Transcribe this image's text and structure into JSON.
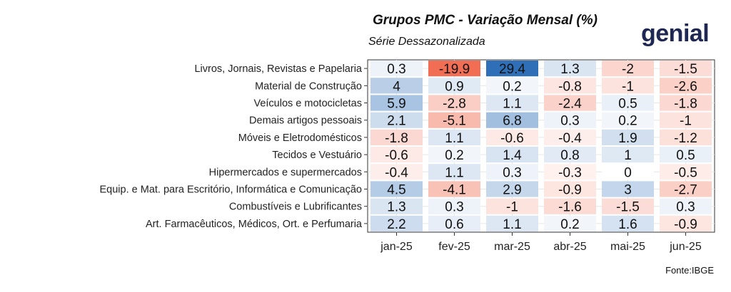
{
  "header": {
    "title": "Grupos PMC - Variação Mensal (%)",
    "subtitle": "Série Dessazonalizada",
    "logo_text": "genial",
    "source": "Fonte:IBGE"
  },
  "colors": {
    "positive": "#2f6fb8",
    "negative": "#ee4b2b",
    "grid": "#e6e6e6",
    "logo": "#1f2753"
  },
  "chart_data": {
    "type": "heatmap",
    "title": "Grupos PMC - Variação Mensal (%)",
    "subtitle": "Série Dessazonalizada",
    "x_categories": [
      "jan-25",
      "fev-25",
      "mar-25",
      "abr-25",
      "mai-25",
      "jun-25"
    ],
    "y_categories": [
      "Livros, Jornais, Revistas e Papelaria",
      "Material de Construção",
      "Veículos e motocicletas",
      "Demais artigos pessoais",
      "Móveis e Eletrodomésticos",
      "Tecidos e Vestuário",
      "Hipermercados e supermercados",
      "Equip. e Mat. para Escritório, Informática e Comunicação",
      "Combustíveis e Lubrificantes",
      "Art. Farmacêuticos, Médicos, Ort. e Perfumaria"
    ],
    "values": [
      [
        0.3,
        -19.9,
        29.4,
        1.3,
        -2,
        -1.5
      ],
      [
        4,
        0.9,
        0.2,
        -0.8,
        -1,
        -2.6
      ],
      [
        5.9,
        -2.8,
        1.1,
        -2.4,
        0.5,
        -1.8
      ],
      [
        2.1,
        -5.1,
        6.8,
        0.3,
        0.2,
        -1
      ],
      [
        -1.8,
        1.1,
        -0.6,
        -0.4,
        1.9,
        -1.2
      ],
      [
        -0.6,
        0.2,
        1.4,
        0.8,
        1,
        0.5
      ],
      [
        -0.4,
        1.1,
        0.3,
        -0.3,
        0,
        -0.5
      ],
      [
        4.5,
        -4.1,
        2.9,
        -0.9,
        3,
        -2.7
      ],
      [
        1.3,
        0.3,
        -1,
        -1.6,
        -1.5,
        0.3
      ],
      [
        2.2,
        0.6,
        1.1,
        0.2,
        1.6,
        -0.9
      ]
    ],
    "value_labels": [
      [
        "0.3",
        "-19.9",
        "29.4",
        "1.3",
        "-2",
        "-1.5"
      ],
      [
        "4",
        "0.9",
        "0.2",
        "-0.8",
        "-1",
        "-2.6"
      ],
      [
        "5.9",
        "-2.8",
        "1.1",
        "-2.4",
        "0.5",
        "-1.8"
      ],
      [
        "2.1",
        "-5.1",
        "6.8",
        "0.3",
        "0.2",
        "-1"
      ],
      [
        "-1.8",
        "1.1",
        "-0.6",
        "-0.4",
        "1.9",
        "-1.2"
      ],
      [
        "-0.6",
        "0.2",
        "1.4",
        "0.8",
        "1",
        "0.5"
      ],
      [
        "-0.4",
        "1.1",
        "0.3",
        "-0.3",
        "0",
        "-0.5"
      ],
      [
        "4.5",
        "-4.1",
        "2.9",
        "-0.9",
        "3",
        "-2.7"
      ],
      [
        "1.3",
        "0.3",
        "-1",
        "-1.6",
        "-1.5",
        "0.3"
      ],
      [
        "2.2",
        "0.6",
        "1.1",
        "0.2",
        "1.6",
        "-0.9"
      ]
    ],
    "color_scale": "diverging blue (positive) / red (negative)",
    "grid": true,
    "legend": "none"
  }
}
